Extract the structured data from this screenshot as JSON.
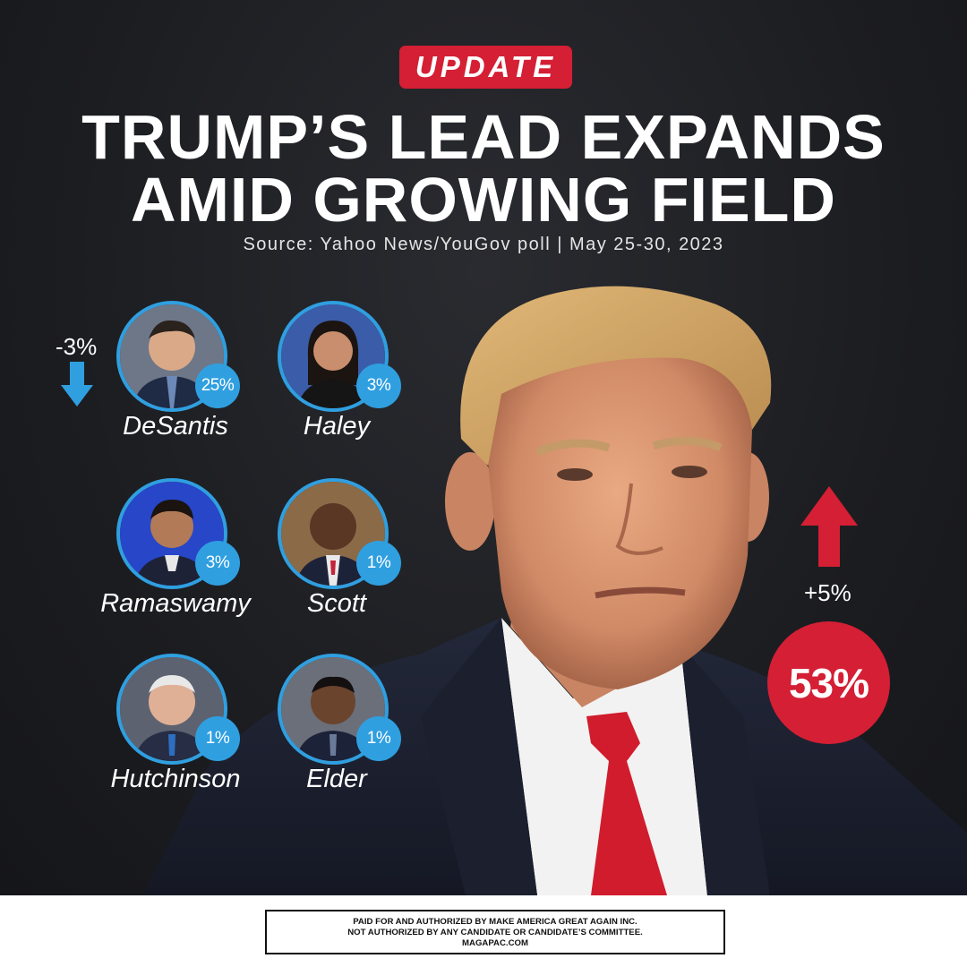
{
  "badge": "UPDATE",
  "headline": {
    "line1": "TRUMP’S LEAD EXPANDS",
    "line2": "AMID GROWING FIELD"
  },
  "source": "Source: Yahoo News/YouGov poll | May 25-30, 2023",
  "candidates": [
    {
      "name": "DeSantis",
      "percent": "25%"
    },
    {
      "name": "Haley",
      "percent": "3%"
    },
    {
      "name": "Ramaswamy",
      "percent": "3%"
    },
    {
      "name": "Scott",
      "percent": "1%"
    },
    {
      "name": "Hutchinson",
      "percent": "1%"
    },
    {
      "name": "Elder",
      "percent": "1%"
    }
  ],
  "desantis_change": "-3%",
  "trump": {
    "change": "+5%",
    "percent": "53%"
  },
  "disclaimer": {
    "line1": "PAID FOR AND AUTHORIZED BY MAKE AMERICA GREAT AGAIN INC.",
    "line2": "NOT AUTHORIZED BY ANY CANDIDATE OR CANDIDATE’S COMMITTEE.",
    "line3": "MAGAPAC.COM"
  },
  "colors": {
    "accent_red": "#d41f34",
    "accent_blue": "#2f9fe0",
    "background": "#1c1d21"
  }
}
